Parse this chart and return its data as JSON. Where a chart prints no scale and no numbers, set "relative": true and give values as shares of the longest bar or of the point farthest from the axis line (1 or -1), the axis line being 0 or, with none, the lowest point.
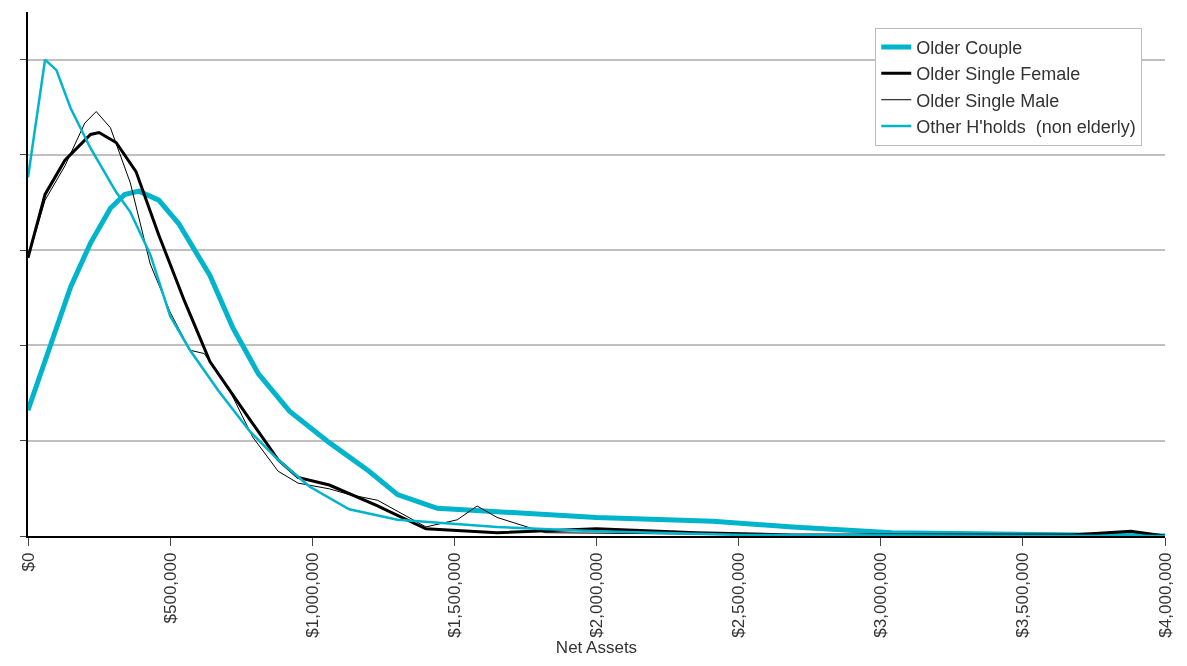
{
  "chart_data": {
    "type": "line",
    "xlabel": "Net Assets",
    "relative": true,
    "xlim": [
      0,
      4000000
    ],
    "xticks": [
      {
        "value": 0,
        "label": "$0"
      },
      {
        "value": 500000,
        "label": "$500,000"
      },
      {
        "value": 1000000,
        "label": "$1,000,000"
      },
      {
        "value": 1500000,
        "label": "$1,500,000"
      },
      {
        "value": 2000000,
        "label": "$2,000,000"
      },
      {
        "value": 2500000,
        "label": "$2,500,000"
      },
      {
        "value": 3000000,
        "label": "$3,000,000"
      },
      {
        "value": 3500000,
        "label": "$3,500,000"
      },
      {
        "value": 4000000,
        "label": "$4,000,000"
      }
    ],
    "grid": "y",
    "legend": "top right",
    "marker": "none",
    "line_style": "solid",
    "series": [
      {
        "name": "Older Couple",
        "color": "#00b4cc",
        "x": [
          0,
          80000,
          150000,
          220000,
          290000,
          340000,
          390000,
          460000,
          530000,
          640000,
          720000,
          810000,
          920000,
          1060000,
          1200000,
          1300000,
          1440000,
          1650000,
          2000000,
          2410000,
          2690000,
          3040000,
          4000000
        ],
        "values": [
          0.264,
          0.402,
          0.523,
          0.615,
          0.688,
          0.717,
          0.724,
          0.705,
          0.656,
          0.547,
          0.438,
          0.341,
          0.262,
          0.196,
          0.136,
          0.087,
          0.058,
          0.051,
          0.039,
          0.031,
          0.019,
          0.007,
          0
        ]
      },
      {
        "name": "Older Single Female",
        "color": "#000000",
        "x": [
          0,
          60000,
          130000,
          220000,
          250000,
          310000,
          380000,
          460000,
          550000,
          640000,
          780000,
          880000,
          950000,
          1060000,
          1230000,
          1400000,
          1650000,
          2000000,
          2350000,
          2690000,
          3670000,
          3880000,
          4000000
        ],
        "values": [
          0.584,
          0.717,
          0.789,
          0.843,
          0.847,
          0.826,
          0.765,
          0.632,
          0.494,
          0.366,
          0.245,
          0.16,
          0.123,
          0.107,
          0.063,
          0.015,
          0.007,
          0.015,
          0.007,
          0.002,
          0.002,
          0.01,
          0
        ]
      },
      {
        "name": "Older Single Male",
        "color": "#000000",
        "x": [
          0,
          60000,
          130000,
          200000,
          240000,
          290000,
          360000,
          430000,
          500000,
          570000,
          620000,
          710000,
          790000,
          880000,
          950000,
          1060000,
          1130000,
          1230000,
          1400000,
          1510000,
          1580000,
          1650000,
          1820000,
          2170000,
          2690000,
          4000000
        ],
        "values": [
          0.584,
          0.705,
          0.777,
          0.867,
          0.891,
          0.857,
          0.741,
          0.571,
          0.47,
          0.39,
          0.383,
          0.305,
          0.208,
          0.136,
          0.111,
          0.099,
          0.087,
          0.075,
          0.019,
          0.034,
          0.063,
          0.039,
          0.007,
          0.005,
          0.002,
          0
        ]
      },
      {
        "name": "Other H'holds  (non elderly)",
        "color": "#00b4cc",
        "x": [
          0,
          60000,
          100000,
          150000,
          220000,
          310000,
          360000,
          430000,
          500000,
          570000,
          670000,
          780000,
          880000,
          990000,
          1130000,
          1300000,
          1470000,
          1650000,
          2000000,
          2520000,
          4000000
        ],
        "values": [
          0.753,
          1.0,
          0.978,
          0.898,
          0.814,
          0.722,
          0.68,
          0.591,
          0.462,
          0.39,
          0.305,
          0.22,
          0.16,
          0.104,
          0.056,
          0.034,
          0.027,
          0.019,
          0.01,
          0.002,
          0
        ]
      }
    ]
  }
}
